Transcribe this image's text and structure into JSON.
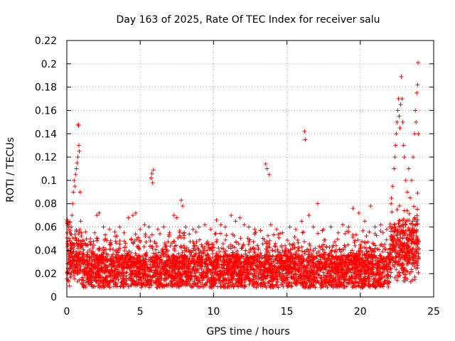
{
  "chart_data": {
    "type": "scatter",
    "title": "Day 163 of 2025, Rate Of TEC Index for receiver salu",
    "xlabel": "GPS time / hours",
    "ylabel": "ROTI / TECUs",
    "xlim": [
      0,
      25
    ],
    "ylim": [
      0,
      0.22
    ],
    "x_ticks": [
      0,
      5,
      10,
      15,
      20,
      25
    ],
    "x_tick_labels": [
      "0",
      "5",
      "10",
      "15",
      "20",
      "25"
    ],
    "y_ticks": [
      0,
      0.02,
      0.04,
      0.06,
      0.08,
      0.1,
      0.12,
      0.14,
      0.16,
      0.18,
      0.2,
      0.22
    ],
    "y_tick_labels": [
      "0",
      "0.02",
      "0.04",
      "0.06",
      "0.08",
      "0.1",
      "0.12",
      "0.14",
      "0.16",
      "0.18",
      "0.2",
      "0.22"
    ],
    "grid": true,
    "marker": "+",
    "color": "#ff0000",
    "series": [
      {
        "name": "ROTI",
        "points": [
          [
            0.05,
            0.065
          ],
          [
            0.1,
            0.062
          ],
          [
            0.2,
            0.055
          ],
          [
            0.3,
            0.06
          ],
          [
            0.35,
            0.07
          ],
          [
            0.4,
            0.08
          ],
          [
            0.45,
            0.09
          ],
          [
            0.5,
            0.1
          ],
          [
            0.55,
            0.095
          ],
          [
            0.6,
            0.105
          ],
          [
            0.65,
            0.11
          ],
          [
            0.7,
            0.115
          ],
          [
            0.75,
            0.12
          ],
          [
            0.78,
            0.148
          ],
          [
            0.8,
            0.147
          ],
          [
            0.82,
            0.13
          ],
          [
            0.85,
            0.125
          ],
          [
            0.9,
            0.09
          ],
          [
            0.95,
            0.065
          ],
          [
            1.0,
            0.055
          ],
          [
            1.1,
            0.048
          ],
          [
            1.3,
            0.045
          ],
          [
            1.6,
            0.05
          ],
          [
            1.9,
            0.055
          ],
          [
            2.05,
            0.07
          ],
          [
            2.2,
            0.072
          ],
          [
            2.5,
            0.06
          ],
          [
            2.9,
            0.058
          ],
          [
            3.3,
            0.052
          ],
          [
            3.6,
            0.06
          ],
          [
            3.9,
            0.055
          ],
          [
            4.2,
            0.068
          ],
          [
            4.5,
            0.07
          ],
          [
            4.7,
            0.072
          ],
          [
            5.0,
            0.058
          ],
          [
            5.3,
            0.062
          ],
          [
            5.6,
            0.06
          ],
          [
            5.75,
            0.102
          ],
          [
            5.8,
            0.106
          ],
          [
            5.85,
            0.098
          ],
          [
            5.9,
            0.109
          ],
          [
            6.2,
            0.058
          ],
          [
            6.6,
            0.06
          ],
          [
            7.0,
            0.055
          ],
          [
            7.3,
            0.07
          ],
          [
            7.5,
            0.068
          ],
          [
            7.8,
            0.083
          ],
          [
            7.9,
            0.078
          ],
          [
            8.1,
            0.06
          ],
          [
            8.6,
            0.058
          ],
          [
            9.0,
            0.06
          ],
          [
            9.4,
            0.062
          ],
          [
            9.8,
            0.058
          ],
          [
            10.2,
            0.066
          ],
          [
            10.5,
            0.062
          ],
          [
            10.8,
            0.06
          ],
          [
            11.2,
            0.07
          ],
          [
            11.5,
            0.065
          ],
          [
            11.8,
            0.068
          ],
          [
            12.1,
            0.062
          ],
          [
            12.4,
            0.06
          ],
          [
            12.8,
            0.058
          ],
          [
            13.2,
            0.057
          ],
          [
            13.55,
            0.114
          ],
          [
            13.65,
            0.11
          ],
          [
            13.8,
            0.105
          ],
          [
            13.9,
            0.062
          ],
          [
            14.3,
            0.058
          ],
          [
            14.7,
            0.055
          ],
          [
            15.2,
            0.06
          ],
          [
            15.6,
            0.058
          ],
          [
            16.0,
            0.065
          ],
          [
            16.2,
            0.142
          ],
          [
            16.25,
            0.135
          ],
          [
            16.5,
            0.07
          ],
          [
            16.8,
            0.06
          ],
          [
            17.1,
            0.08
          ],
          [
            17.5,
            0.058
          ],
          [
            18.0,
            0.06
          ],
          [
            18.5,
            0.055
          ],
          [
            18.8,
            0.062
          ],
          [
            19.2,
            0.06
          ],
          [
            19.5,
            0.076
          ],
          [
            19.9,
            0.072
          ],
          [
            20.3,
            0.065
          ],
          [
            20.7,
            0.078
          ],
          [
            21.0,
            0.06
          ],
          [
            21.4,
            0.062
          ],
          [
            21.8,
            0.058
          ],
          [
            22.0,
            0.06
          ],
          [
            22.1,
            0.08
          ],
          [
            22.2,
            0.095
          ],
          [
            22.3,
            0.11
          ],
          [
            22.35,
            0.12
          ],
          [
            22.4,
            0.13
          ],
          [
            22.45,
            0.14
          ],
          [
            22.5,
            0.15
          ],
          [
            22.55,
            0.16
          ],
          [
            22.6,
            0.17
          ],
          [
            22.65,
            0.155
          ],
          [
            22.7,
            0.145
          ],
          [
            22.75,
            0.165
          ],
          [
            22.8,
            0.189
          ],
          [
            22.85,
            0.17
          ],
          [
            22.9,
            0.15
          ],
          [
            22.95,
            0.13
          ],
          [
            23.0,
            0.12
          ],
          [
            23.1,
            0.1
          ],
          [
            23.2,
            0.09
          ],
          [
            23.3,
            0.11
          ],
          [
            23.4,
            0.085
          ],
          [
            23.5,
            0.1
          ],
          [
            23.6,
            0.12
          ],
          [
            23.7,
            0.14
          ],
          [
            23.75,
            0.16
          ],
          [
            23.8,
            0.15
          ],
          [
            23.85,
            0.175
          ],
          [
            23.9,
            0.182
          ],
          [
            23.93,
            0.201
          ],
          [
            23.95,
            0.14
          ]
        ]
      }
    ]
  }
}
